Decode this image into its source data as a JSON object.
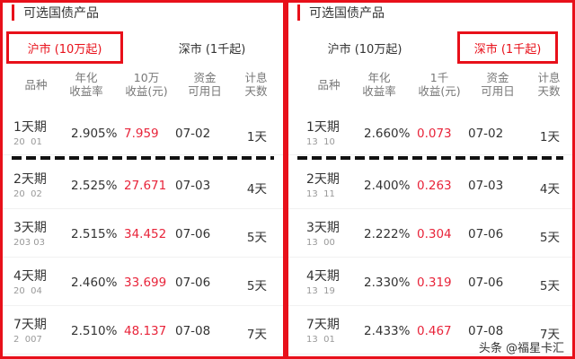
{
  "panels": [
    {
      "title": "可选国债产品",
      "tabs": [
        {
          "label": "沪市 (10万起)",
          "active": true
        },
        {
          "label": "深市 (1千起)",
          "active": false
        }
      ],
      "headers": [
        "品种",
        "年化\n收益率",
        "10万\n收益(元)",
        "资金\n可用日",
        "计息\n天数"
      ],
      "rows": [
        {
          "name": "1天期",
          "code": "20  01",
          "rate": "2.905%",
          "income": "7.959",
          "date": "07-02",
          "days": "1天"
        },
        {
          "name": "2天期",
          "code": "20  02",
          "rate": "2.525%",
          "income": "27.671",
          "date": "07-03",
          "days": "4天"
        },
        {
          "name": "3天期",
          "code": "203 03",
          "rate": "2.515%",
          "income": "34.452",
          "date": "07-06",
          "days": "5天"
        },
        {
          "name": "4天期",
          "code": "20  04",
          "rate": "2.460%",
          "income": "33.699",
          "date": "07-06",
          "days": "5天"
        },
        {
          "name": "7天期",
          "code": "2  007",
          "rate": "2.510%",
          "income": "48.137",
          "date": "07-08",
          "days": "7天"
        }
      ]
    },
    {
      "title": "可选国债产品",
      "tabs": [
        {
          "label": "沪市 (10万起)",
          "active": false
        },
        {
          "label": "深市 (1千起)",
          "active": true
        }
      ],
      "headers": [
        "品种",
        "年化\n收益率",
        "1千\n收益(元)",
        "资金\n可用日",
        "计息\n天数"
      ],
      "rows": [
        {
          "name": "1天期",
          "code": "13  10",
          "rate": "2.660%",
          "income": "0.073",
          "date": "07-02",
          "days": "1天"
        },
        {
          "name": "2天期",
          "code": "13  11",
          "rate": "2.400%",
          "income": "0.263",
          "date": "07-03",
          "days": "4天"
        },
        {
          "name": "3天期",
          "code": "13  00",
          "rate": "2.222%",
          "income": "0.304",
          "date": "07-06",
          "days": "5天"
        },
        {
          "name": "4天期",
          "code": "13  19",
          "rate": "2.330%",
          "income": "0.319",
          "date": "07-06",
          "days": "5天"
        },
        {
          "name": "7天期",
          "code": "13  01",
          "rate": "2.433%",
          "income": "0.467",
          "date": "07-08",
          "days": "7天"
        }
      ]
    }
  ],
  "watermark": "头条 @福星卡汇",
  "colors": {
    "accent": "#e8101a",
    "income": "#e8243a"
  }
}
